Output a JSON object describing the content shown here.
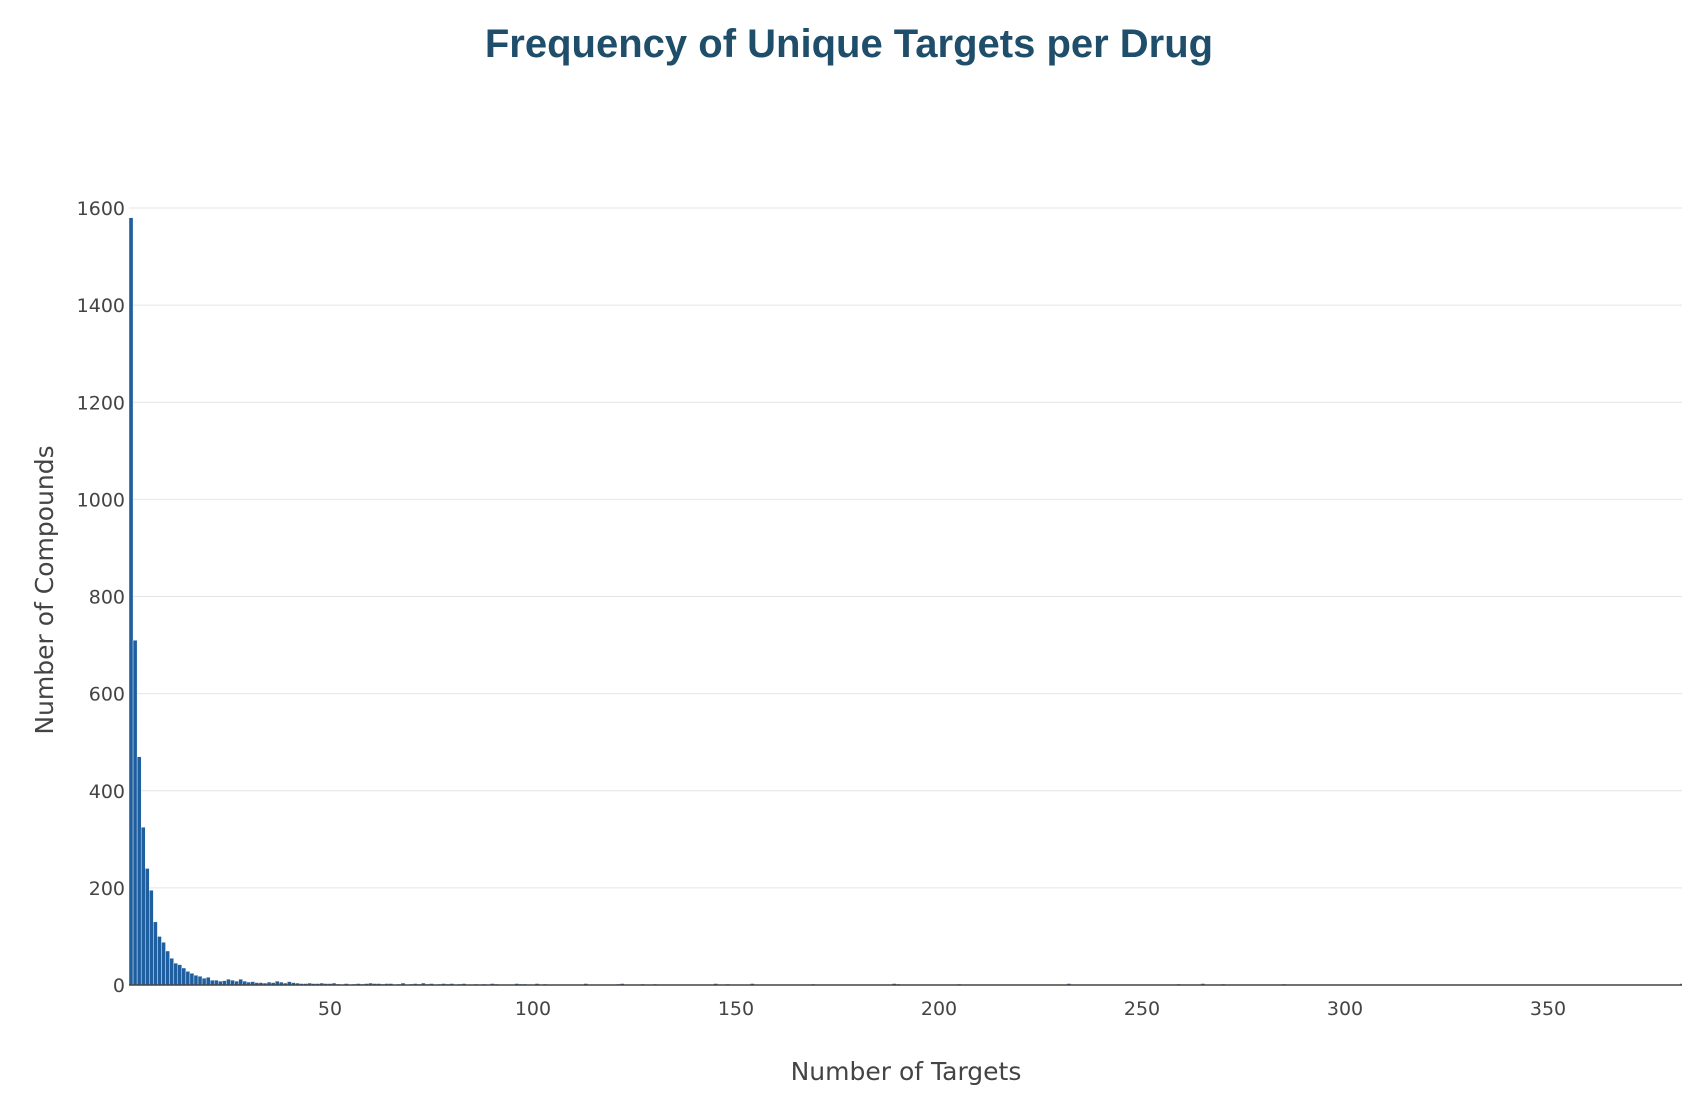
{
  "chart_data": {
    "type": "bar",
    "title": "Frequency of Unique Targets per Drug",
    "xlabel": "Number of Targets",
    "ylabel": "Number of Compounds",
    "xlim": [
      0.5,
      383
    ],
    "ylim": [
      0,
      1600
    ],
    "xticks": [
      50,
      100,
      150,
      200,
      250,
      300,
      350
    ],
    "yticks": [
      0,
      200,
      400,
      600,
      800,
      1000,
      1200,
      1400,
      1600
    ],
    "grid": true,
    "bar_color": "#1f5fa0",
    "series": [
      {
        "x": [
          1,
          2,
          3,
          4,
          5,
          6,
          7,
          8,
          9,
          10,
          11,
          12,
          13,
          14,
          15,
          16,
          17,
          18,
          19,
          20,
          21,
          22,
          23,
          24,
          25,
          26,
          27,
          28,
          29,
          30,
          31,
          32,
          33,
          34,
          35,
          36,
          37,
          38,
          39,
          40,
          41,
          42,
          43,
          44,
          45,
          46,
          47,
          48,
          49,
          50,
          51,
          52,
          54,
          56,
          57,
          58,
          59,
          60,
          61,
          62,
          63,
          64,
          65,
          67,
          68,
          70,
          71,
          72,
          73,
          74,
          75,
          77,
          78,
          79,
          80,
          82,
          83,
          86,
          88,
          90,
          91,
          96,
          97,
          98,
          101,
          103,
          113,
          121,
          122,
          127,
          130,
          145,
          148,
          154,
          169,
          189,
          190,
          205,
          232,
          259,
          265,
          270,
          285,
          383
        ],
        "values": [
          1580,
          710,
          470,
          325,
          240,
          195,
          130,
          100,
          88,
          70,
          55,
          45,
          42,
          35,
          28,
          24,
          20,
          18,
          14,
          16,
          10,
          10,
          8,
          9,
          12,
          10,
          8,
          12,
          8,
          6,
          7,
          5,
          5,
          4,
          6,
          5,
          8,
          6,
          4,
          7,
          5,
          4,
          3,
          3,
          4,
          3,
          3,
          4,
          3,
          3,
          4,
          2,
          3,
          2,
          3,
          2,
          3,
          4,
          3,
          3,
          2,
          3,
          3,
          2,
          4,
          2,
          3,
          2,
          4,
          2,
          3,
          2,
          3,
          2,
          3,
          2,
          3,
          2,
          2,
          3,
          2,
          3,
          2,
          2,
          3,
          2,
          3,
          2,
          3,
          2,
          2,
          3,
          2,
          3,
          2,
          3,
          2,
          2,
          3,
          2,
          3,
          2,
          2,
          3
        ]
      }
    ]
  }
}
